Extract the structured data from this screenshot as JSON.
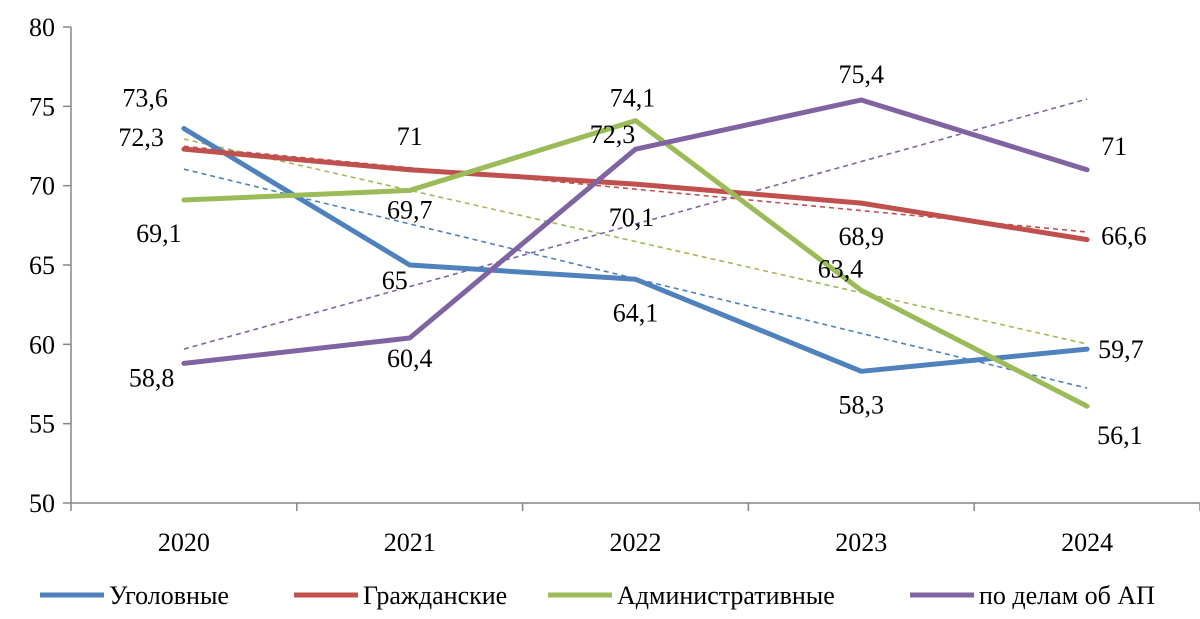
{
  "chart_data": {
    "type": "line",
    "categories": [
      "2020",
      "2021",
      "2022",
      "2023",
      "2024"
    ],
    "ylim": [
      50,
      80
    ],
    "yticks": [
      "50",
      "55",
      "60",
      "65",
      "70",
      "75",
      "80"
    ],
    "grid": false,
    "trendlines": "linear, dashed, one per series",
    "legend_position": "bottom",
    "series": [
      {
        "name": "Уголовные",
        "color": "#4F81BD",
        "values": [
          73.6,
          65,
          64.1,
          58.3,
          59.7
        ],
        "labels": [
          "73,6",
          "65",
          "64,1",
          "58,3",
          "59,7"
        ]
      },
      {
        "name": "Гражданские",
        "color": "#C0504D",
        "values": [
          72.3,
          71,
          70.1,
          68.9,
          66.6
        ],
        "labels": [
          "72,3",
          "71",
          "70,1",
          "68,9",
          "66,6"
        ]
      },
      {
        "name": "Административные",
        "color": "#9BBB59",
        "values": [
          69.1,
          69.7,
          74.1,
          63.4,
          56.1
        ],
        "labels": [
          "69,1",
          "69,7",
          "74,1",
          "63,4",
          "56,1"
        ]
      },
      {
        "name": "по делам об АП",
        "color": "#8064A2",
        "values": [
          58.8,
          60.4,
          72.3,
          75.4,
          71
        ],
        "labels": [
          "58,8",
          "60,4",
          "72,3",
          "75,4",
          "71"
        ]
      }
    ]
  }
}
